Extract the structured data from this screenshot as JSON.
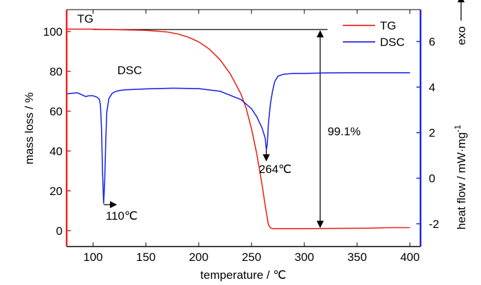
{
  "chart_data": {
    "type": "line",
    "xlabel": "temperature / ℃",
    "ylabel_left": "mass loss / %",
    "ylabel_right": "heat flow / mW·mg",
    "ylabel_right_sup": "-1",
    "ylabel_right_exo": "exo",
    "xlim": [
      75,
      410
    ],
    "ylim_left": [
      -8,
      111
    ],
    "ylim_right": [
      -3.0,
      7.4
    ],
    "x_ticks": [
      100,
      150,
      200,
      250,
      300,
      350,
      400
    ],
    "y_left_ticks": [
      0,
      20,
      40,
      60,
      80,
      100
    ],
    "y_right_ticks": [
      -2,
      0,
      2,
      4,
      6
    ],
    "legend_position": "top-right",
    "series": [
      {
        "name": "TG",
        "axis": "left",
        "color": "#e8231b",
        "x": [
          75,
          100,
          150,
          170,
          180,
          190,
          200,
          210,
          220,
          230,
          240,
          245,
          250,
          255,
          260,
          263,
          266,
          268,
          270,
          280,
          300,
          330,
          360,
          380,
          400
        ],
        "y": [
          101.2,
          101.2,
          100.6,
          99.8,
          98.8,
          97.2,
          94.8,
          91.2,
          86.0,
          78.6,
          68.6,
          61.4,
          51.2,
          38.5,
          23.0,
          12.5,
          3.0,
          1.3,
          1.0,
          1.0,
          1.0,
          1.1,
          1.2,
          1.5,
          1.5
        ]
      },
      {
        "name": "DSC",
        "axis": "right",
        "color": "#1c26e8",
        "x": [
          75,
          85,
          90,
          93,
          96,
          100,
          104,
          106,
          107,
          108,
          109,
          110,
          111,
          112,
          113,
          115,
          118,
          121,
          125,
          130,
          150,
          175,
          200,
          220,
          240,
          250,
          255,
          260,
          263,
          264,
          265,
          266,
          268,
          270,
          272,
          275,
          280,
          285,
          290,
          300,
          320,
          340,
          380,
          400
        ],
        "y": [
          3.7,
          3.75,
          3.65,
          3.58,
          3.62,
          3.62,
          3.55,
          3.45,
          3.2,
          2.2,
          0.2,
          -1.1,
          -0.2,
          1.6,
          2.9,
          3.5,
          3.72,
          3.8,
          3.85,
          3.88,
          3.92,
          3.95,
          3.93,
          3.82,
          3.45,
          3.05,
          2.7,
          2.2,
          1.75,
          1.25,
          1.5,
          2.4,
          3.3,
          3.85,
          4.25,
          4.48,
          4.56,
          4.58,
          4.6,
          4.6,
          4.62,
          4.63,
          4.63,
          4.63
        ]
      }
    ],
    "annotations": {
      "tg_label": "TG",
      "dsc_label": "DSC",
      "percent": "99.1%",
      "peak1": "110℃",
      "peak2": "264℃"
    }
  }
}
